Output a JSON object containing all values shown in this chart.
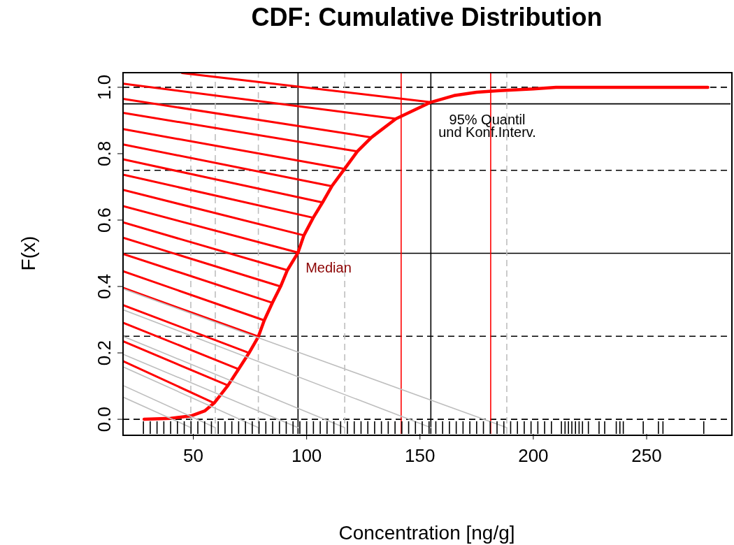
{
  "chart_data": {
    "type": "line",
    "title": "CDF: Cumulative Distribution",
    "xlabel": "Concentration [ng/g]",
    "ylabel": "F(x)",
    "xlim": [
      19,
      287
    ],
    "ylim": [
      -0.044,
      1.044
    ],
    "xticks": [
      50,
      100,
      150,
      200,
      250
    ],
    "yticks": [
      {
        "value": 0,
        "label": "0.0"
      },
      {
        "value": 0.2,
        "label": "0.2"
      },
      {
        "value": 0.4,
        "label": "0.4"
      },
      {
        "value": 0.6,
        "label": "0.6"
      },
      {
        "value": 0.8,
        "label": "0.8"
      },
      {
        "value": 1,
        "label": "1.0"
      }
    ],
    "series": [
      {
        "color": "#ff0000",
        "x": [
          28.3,
          40,
          48.9,
          55,
          59.2,
          65.3,
          70,
          74.6,
          78.7,
          81.3,
          84.9,
          88.5,
          91.5,
          96.2,
          98.8,
          102.9,
          107,
          111.1,
          116.7,
          122.4,
          128.6,
          139.4,
          154.8,
          165,
          175,
          185,
          200,
          210,
          277
        ],
        "values": [
          0,
          0.003,
          0.01,
          0.025,
          0.049,
          0.102,
          0.151,
          0.2,
          0.249,
          0.298,
          0.351,
          0.4,
          0.449,
          0.502,
          0.554,
          0.607,
          0.653,
          0.702,
          0.754,
          0.807,
          0.849,
          0.905,
          0.955,
          0.975,
          0.985,
          0.99,
          0.995,
          1,
          1
        ]
      },
      {
        "type": "line",
        "color": "#ff0000",
        "x": [
          45,
          154.8
        ],
        "values": [
          1.043,
          0.955
        ]
      },
      {
        "type": "line",
        "color": "#ff0000",
        "x": [
          19,
          139.4
        ],
        "values": [
          1.011,
          0.905
        ]
      },
      {
        "type": "line",
        "color": "#ff0000",
        "x": [
          19,
          128.6
        ],
        "values": [
          0.965,
          0.849
        ]
      },
      {
        "type": "line",
        "color": "#ff0000",
        "x": [
          19,
          122.4
        ],
        "values": [
          0.923,
          0.807
        ]
      },
      {
        "type": "line",
        "color": "#ff0000",
        "x": [
          19,
          116.7
        ],
        "values": [
          0.874,
          0.754
        ]
      },
      {
        "type": "line",
        "color": "#ff0000",
        "x": [
          19,
          111.1
        ],
        "values": [
          0.828,
          0.702
        ]
      },
      {
        "type": "line",
        "color": "#ff0000",
        "x": [
          19,
          107
        ],
        "values": [
          0.783,
          0.653
        ]
      },
      {
        "type": "line",
        "color": "#ff0000",
        "x": [
          19,
          102.9
        ],
        "values": [
          0.737,
          0.607
        ]
      },
      {
        "type": "line",
        "color": "#ff0000",
        "x": [
          19,
          98.8
        ],
        "values": [
          0.691,
          0.554
        ]
      },
      {
        "type": "line",
        "color": "#ff0000",
        "x": [
          19,
          96.2
        ],
        "values": [
          0.642,
          0.502
        ]
      },
      {
        "type": "line",
        "color": "#ff0000",
        "x": [
          19,
          91.5
        ],
        "values": [
          0.593,
          0.449
        ]
      },
      {
        "type": "line",
        "color": "#ff0000",
        "x": [
          19,
          88.5
        ],
        "values": [
          0.547,
          0.4
        ]
      },
      {
        "type": "line",
        "color": "#ff0000",
        "x": [
          19,
          84.9
        ],
        "values": [
          0.498,
          0.351
        ]
      },
      {
        "type": "line",
        "color": "#ff0000",
        "x": [
          19,
          81.3
        ],
        "values": [
          0.446,
          0.298
        ]
      },
      {
        "type": "line",
        "color": "#ff0000",
        "x": [
          19,
          78.7
        ],
        "values": [
          0.396,
          0.249
        ]
      },
      {
        "type": "line",
        "color": "#ff0000",
        "x": [
          19,
          74.6
        ],
        "values": [
          0.344,
          0.2
        ]
      },
      {
        "type": "line",
        "color": "#ff0000",
        "x": [
          19,
          70
        ],
        "values": [
          0.291,
          0.151
        ]
      },
      {
        "type": "line",
        "color": "#ff0000",
        "x": [
          19,
          65.3
        ],
        "values": [
          0.235,
          0.102
        ]
      },
      {
        "type": "line",
        "color": "#ff0000",
        "x": [
          19,
          59.2
        ],
        "values": [
          0.175,
          0.049
        ]
      },
      {
        "type": "line",
        "color": "#bebebe",
        "x": [
          19,
          188.3
        ],
        "values": [
          0.393,
          -0.025
        ]
      },
      {
        "type": "line",
        "color": "#bebebe",
        "x": [
          19,
          154.8
        ],
        "values": [
          0.33,
          -0.025
        ]
      },
      {
        "type": "line",
        "color": "#bebebe",
        "x": [
          19,
          116.8
        ],
        "values": [
          0.25,
          -0.025
        ]
      },
      {
        "type": "line",
        "color": "#bebebe",
        "x": [
          19,
          96.2
        ],
        "values": [
          0.196,
          -0.025
        ]
      },
      {
        "type": "line",
        "color": "#bebebe",
        "x": [
          19,
          78.7
        ],
        "values": [
          0.158,
          -0.025
        ]
      },
      {
        "type": "line",
        "color": "#bebebe",
        "x": [
          19,
          59.7
        ],
        "values": [
          0.102,
          -0.025
        ]
      },
      {
        "type": "line",
        "color": "#bebebe",
        "x": [
          19,
          48.9
        ],
        "values": [
          0.067,
          -0.025
        ]
      },
      {
        "type": "bar",
        "color": "#000000",
        "base": [
          -0.044,
          -0.044,
          -0.044,
          -0.044,
          -0.044,
          -0.044,
          -0.044,
          -0.044,
          -0.044,
          -0.044,
          -0.044,
          -0.044,
          -0.044,
          -0.044,
          -0.044,
          -0.044,
          -0.044,
          -0.044,
          -0.044,
          -0.044,
          -0.044,
          -0.044,
          -0.044,
          -0.044,
          -0.044,
          -0.044,
          -0.044,
          -0.044,
          -0.044,
          -0.044,
          -0.044,
          -0.044,
          -0.044,
          -0.044,
          -0.044,
          -0.044,
          -0.044,
          -0.044,
          -0.044,
          -0.044,
          -0.044,
          -0.044,
          -0.044,
          -0.044,
          -0.044,
          -0.044,
          -0.044,
          -0.044,
          -0.044,
          -0.044,
          -0.044,
          -0.044,
          -0.044,
          -0.044,
          -0.044,
          -0.044,
          -0.044,
          -0.044,
          -0.044,
          -0.044,
          -0.044,
          -0.044,
          -0.044,
          -0.044,
          -0.044,
          -0.044,
          -0.044,
          -0.044,
          -0.044,
          -0.044,
          -0.044,
          -0.044,
          -0.044,
          -0.044,
          -0.044,
          -0.044,
          -0.044,
          -0.044
        ],
        "x": [
          28,
          31,
          34,
          37,
          40,
          43,
          46,
          49,
          52,
          55,
          58,
          61,
          64,
          67,
          70,
          73,
          76,
          79,
          82,
          85,
          88,
          91,
          94,
          97,
          100,
          103,
          106,
          109,
          112,
          115,
          118,
          121,
          124,
          127,
          130,
          133,
          136,
          139,
          142,
          145,
          148,
          151,
          154,
          157,
          160,
          163,
          166,
          169,
          172,
          175,
          178,
          181,
          184,
          187,
          190,
          193,
          196,
          199,
          202,
          205,
          208,
          212.4,
          214,
          215.5,
          217,
          218.6,
          220.2,
          221.7,
          224.3,
          229,
          231.5,
          236.6,
          238.2,
          239.7,
          248.5,
          255.2,
          257.2,
          275.2
        ],
        "values": [
          0.038,
          0.038,
          0.038,
          0.038,
          0.038,
          0.038,
          0.038,
          0.038,
          0.038,
          0.038,
          0.038,
          0.038,
          0.038,
          0.038,
          0.038,
          0.038,
          0.038,
          0.038,
          0.038,
          0.038,
          0.038,
          0.038,
          0.038,
          0.038,
          0.038,
          0.038,
          0.038,
          0.038,
          0.038,
          0.038,
          0.038,
          0.038,
          0.038,
          0.038,
          0.038,
          0.038,
          0.038,
          0.038,
          0.038,
          0.038,
          0.038,
          0.038,
          0.038,
          0.038,
          0.038,
          0.038,
          0.038,
          0.038,
          0.038,
          0.038,
          0.038,
          0.038,
          0.038,
          0.038,
          0.038,
          0.038,
          0.038,
          0.038,
          0.038,
          0.038,
          0.038,
          0.038,
          0.038,
          0.038,
          0.038,
          0.038,
          0.038,
          0.038,
          0.038,
          0.038,
          0.038,
          0.038,
          0.038,
          0.038,
          0.038,
          0.038,
          0.038,
          0.038
        ]
      }
    ],
    "ref_lines": [
      {
        "axis": "y",
        "value": 0,
        "color": "#000000",
        "line_style": "dashed"
      },
      {
        "axis": "y",
        "value": 0.25,
        "color": "#000000",
        "line_style": "dashed"
      },
      {
        "axis": "y",
        "value": 0.75,
        "color": "#000000",
        "line_style": "dashed"
      },
      {
        "axis": "y",
        "value": 1,
        "color": "#000000",
        "line_style": "dashed"
      },
      {
        "axis": "y",
        "value": 0.5,
        "color": "#000000",
        "line_style": "solid"
      },
      {
        "axis": "y",
        "value": 0.95,
        "color": "#000000",
        "line_style": "solid"
      },
      {
        "axis": "x",
        "value": 96.2,
        "color": "#000000",
        "line_style": "solid"
      },
      {
        "axis": "x",
        "value": 154.8,
        "color": "#000000",
        "line_style": "solid"
      },
      {
        "axis": "x",
        "value": 141.7,
        "color": "#ff0000",
        "line_style": "solid"
      },
      {
        "axis": "x",
        "value": 181.2,
        "color": "#ff0000",
        "line_style": "solid"
      },
      {
        "axis": "x",
        "value": 48.9,
        "color": "#bebebe",
        "line_style": "dashed"
      },
      {
        "axis": "x",
        "value": 59.7,
        "color": "#bebebe",
        "line_style": "dashed"
      },
      {
        "axis": "x",
        "value": 78.7,
        "color": "#bebebe",
        "line_style": "dashed"
      },
      {
        "axis": "x",
        "value": 116.8,
        "color": "#bebebe",
        "line_style": "dashed"
      },
      {
        "axis": "x",
        "value": 188.3,
        "color": "#bebebe",
        "line_style": "dashed"
      }
    ],
    "annotations": [
      "95% Quantil\nund Konf.Interv.",
      "Median"
    ]
  }
}
